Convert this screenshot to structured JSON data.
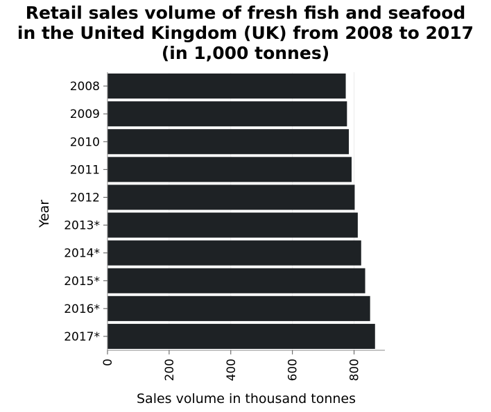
{
  "chart_data": {
    "type": "bar",
    "orientation": "horizontal",
    "title_lines": [
      "Retail sales volume of fresh fish and seafood",
      "in the United Kingdom (UK) from 2008 to 2017",
      "(in 1,000 tonnes)"
    ],
    "xlabel": "Sales volume in thousand tonnes",
    "ylabel": "Year",
    "categories": [
      "2008",
      "2009",
      "2010",
      "2011",
      "2012",
      "2013*",
      "2014*",
      "2015*",
      "2016*",
      "2017*"
    ],
    "values": [
      773,
      777,
      783,
      792,
      802,
      812,
      823,
      836,
      852,
      868
    ],
    "xlim": [
      0,
      900
    ],
    "xticks": [
      "0",
      "200",
      "400",
      "600",
      "800"
    ],
    "grid": true,
    "bar_color": "#1e2225",
    "grid_color": "#ebebeb"
  }
}
